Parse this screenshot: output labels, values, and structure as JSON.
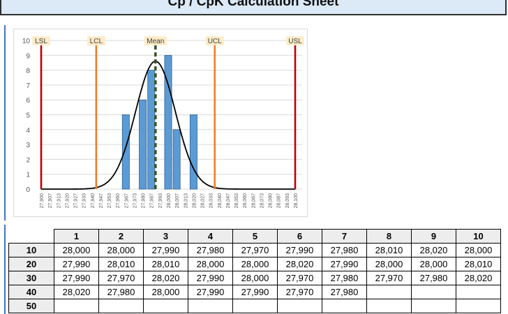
{
  "page": {
    "title": "Cp / CpK Calculation Sheet"
  },
  "chart_data": {
    "type": "bar",
    "categories": [
      "27,900",
      "27,907",
      "27,913",
      "27,920",
      "27,927",
      "27,933",
      "27,940",
      "27,947",
      "27,953",
      "27,960",
      "27,967",
      "27,973",
      "27,980",
      "27,987",
      "27,993",
      "28,000",
      "28,007",
      "28,013",
      "28,020",
      "28,027",
      "28,033",
      "28,040",
      "28,047",
      "28,053",
      "28,060",
      "28,067",
      "28,073",
      "28,080",
      "28,087",
      "28,093",
      "28,100"
    ],
    "values": [
      0,
      0,
      0,
      0,
      0,
      0,
      0,
      0,
      0,
      0,
      5,
      0,
      6,
      8,
      0,
      9,
      4,
      0,
      5,
      0,
      0,
      0,
      0,
      0,
      0,
      0,
      0,
      0,
      0,
      0,
      0
    ],
    "ylim": [
      0,
      10
    ],
    "yticks": [
      "0",
      "1",
      "2",
      "3",
      "4",
      "5",
      "6",
      "7",
      "8",
      "9",
      "10"
    ],
    "grid": true,
    "markers": [
      {
        "label": "LSL",
        "category": 0,
        "color": "#c00000"
      },
      {
        "label": "LCL",
        "category": 6.5,
        "color": "#f07e26"
      },
      {
        "label": "Mean",
        "category": 13.5,
        "color": "#375623"
      },
      {
        "label": "UCL",
        "category": 20.5,
        "color": "#f07e26"
      },
      {
        "label": "USL",
        "category": 30,
        "color": "#c00000"
      }
    ],
    "curve": {
      "mean_category": 13.5,
      "sd_categories": 2.35,
      "peak": 8.6,
      "color": "#000000"
    },
    "bar_color": "#5b9bd5"
  },
  "table": {
    "columns": [
      "1",
      "2",
      "3",
      "4",
      "5",
      "6",
      "7",
      "8",
      "9",
      "10"
    ],
    "rows": [
      {
        "label": "10",
        "cells": [
          "28,000",
          "28,000",
          "27,990",
          "27,980",
          "27,970",
          "27,990",
          "27,980",
          "28,010",
          "28,020",
          "28,000"
        ]
      },
      {
        "label": "20",
        "cells": [
          "27,990",
          "28,010",
          "28,010",
          "28,000",
          "28,000",
          "28,020",
          "27,990",
          "28,000",
          "28,000",
          "28,010"
        ]
      },
      {
        "label": "30",
        "cells": [
          "27,990",
          "27,970",
          "28,020",
          "27,990",
          "28,000",
          "27,970",
          "27,980",
          "27,970",
          "27,980",
          "28,020"
        ]
      },
      {
        "label": "40",
        "cells": [
          "28,020",
          "27,980",
          "28,000",
          "27,990",
          "27,990",
          "27,970",
          "27,980",
          "",
          "",
          ""
        ]
      },
      {
        "label": "50",
        "cells": [
          "",
          "",
          "",
          "",
          "",
          "",
          "",
          "",
          "",
          ""
        ]
      }
    ]
  }
}
